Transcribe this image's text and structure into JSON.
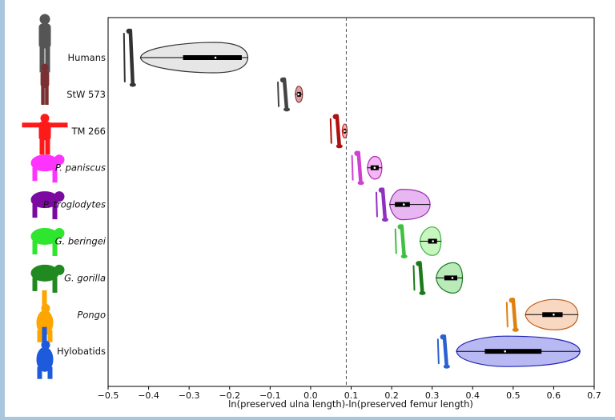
{
  "chart_data": {
    "type": "violin",
    "title": "",
    "xlabel": "ln(preserved ulna length)-ln(preserved femur length)",
    "ylabel": "",
    "xlim": [
      -0.5,
      0.7
    ],
    "xticks": [
      -0.5,
      -0.4,
      -0.3,
      -0.2,
      -0.1,
      0.0,
      0.1,
      0.2,
      0.3,
      0.4,
      0.5,
      0.6,
      0.7
    ],
    "xtick_labels": [
      "−0.5",
      "−0.4",
      "−0.3",
      "−0.2",
      "−0.1",
      "0.0",
      "0.1",
      "0.2",
      "0.3",
      "0.4",
      "0.5",
      "0.6",
      "0.7"
    ],
    "reference_line": 0.088,
    "categories": [
      "Humans",
      "StW 573",
      "TM 266",
      "P. paniscus",
      "P. troglodytes",
      "G. beringei",
      "G. gorilla",
      "Pongo",
      "Hylobatids"
    ],
    "series": [
      {
        "name": "Humans",
        "italic": false,
        "color": "#e6e6e6",
        "edge": "#333333",
        "box_color": "#000000",
        "min": -0.42,
        "q1": -0.315,
        "median": -0.235,
        "q3": -0.17,
        "max": -0.155,
        "peak": -0.24
      },
      {
        "name": "StW 573",
        "italic": false,
        "color": "#d9a0a0",
        "edge": "#8b3a3a",
        "box_color": "#000000",
        "min": -0.038,
        "q1": -0.033,
        "median": -0.03,
        "q3": -0.024,
        "max": -0.02,
        "peak": -0.03
      },
      {
        "name": "TM 266",
        "italic": false,
        "color": "#f5b5b5",
        "edge": "#d02020",
        "box_color": "#000000",
        "min": 0.078,
        "q1": 0.081,
        "median": 0.084,
        "q3": 0.087,
        "max": 0.09,
        "peak": 0.084
      },
      {
        "name": "P. paniscus",
        "italic": true,
        "color": "#f4b6f4",
        "edge": "#b030b0",
        "box_color": "#000000",
        "min": 0.14,
        "q1": 0.148,
        "median": 0.158,
        "q3": 0.168,
        "max": 0.176,
        "peak": 0.158
      },
      {
        "name": "P. troglodytes",
        "italic": true,
        "color": "#e8b6f0",
        "edge": "#9a30b8",
        "box_color": "#000000",
        "min": 0.195,
        "q1": 0.208,
        "median": 0.23,
        "q3": 0.245,
        "max": 0.295,
        "peak": 0.225
      },
      {
        "name": "G. beringei",
        "italic": true,
        "color": "#c8f5c0",
        "edge": "#40b040",
        "box_color": "#000000",
        "min": 0.27,
        "q1": 0.29,
        "median": 0.302,
        "q3": 0.312,
        "max": 0.322,
        "peak": 0.3
      },
      {
        "name": "G. gorilla",
        "italic": true,
        "color": "#b8ebb8",
        "edge": "#1e7a2a",
        "box_color": "#000000",
        "min": 0.31,
        "q1": 0.33,
        "median": 0.35,
        "q3": 0.362,
        "max": 0.375,
        "peak": 0.352
      },
      {
        "name": "Pongo",
        "italic": true,
        "color": "#f8d8c0",
        "edge": "#c06020",
        "box_color": "#000000",
        "min": 0.53,
        "q1": 0.572,
        "median": 0.6,
        "q3": 0.622,
        "max": 0.66,
        "peak": 0.6
      },
      {
        "name": "Hylobatids",
        "italic": false,
        "color": "#b8b8f2",
        "edge": "#2424b8",
        "box_color": "#000000",
        "min": 0.36,
        "q1": 0.43,
        "median": 0.48,
        "q3": 0.57,
        "max": 0.665,
        "peak": 0.48
      }
    ],
    "silhouettes": [
      {
        "name": "Humans",
        "color": "#555555",
        "shape": "standing"
      },
      {
        "name": "StW 573",
        "color": "#7a3030",
        "shape": "standing"
      },
      {
        "name": "TM 266",
        "color": "#ff1a1a",
        "shape": "arms-out"
      },
      {
        "name": "P. paniscus",
        "color": "#ff33ff",
        "shape": "quadruped"
      },
      {
        "name": "P. troglodytes",
        "color": "#7a0aa0",
        "shape": "quadruped"
      },
      {
        "name": "G. beringei",
        "color": "#2ee62e",
        "shape": "quadruped"
      },
      {
        "name": "G. gorilla",
        "color": "#208a20",
        "shape": "quadruped"
      },
      {
        "name": "Pongo",
        "color": "#ffa500",
        "shape": "hanging"
      },
      {
        "name": "Hylobatids",
        "color": "#1e5adc",
        "shape": "hanging"
      }
    ],
    "bone_icons": [
      {
        "name": "Humans",
        "color": "#333333",
        "x": -0.445
      },
      {
        "name": "StW 573",
        "color": "#444444",
        "x": -0.065
      },
      {
        "name": "TM 266",
        "color": "#b01010",
        "x": 0.065
      },
      {
        "name": "P. paniscus",
        "color": "#d040d0",
        "x": 0.118
      },
      {
        "name": "P. troglodytes",
        "color": "#9030c0",
        "x": 0.178
      },
      {
        "name": "G. beringei",
        "color": "#40c040",
        "x": 0.225
      },
      {
        "name": "G. gorilla",
        "color": "#1a7a1a",
        "x": 0.27
      },
      {
        "name": "Pongo",
        "color": "#e08010",
        "x": 0.5
      },
      {
        "name": "Hylobatids",
        "color": "#2a60d0",
        "x": 0.33
      }
    ]
  }
}
